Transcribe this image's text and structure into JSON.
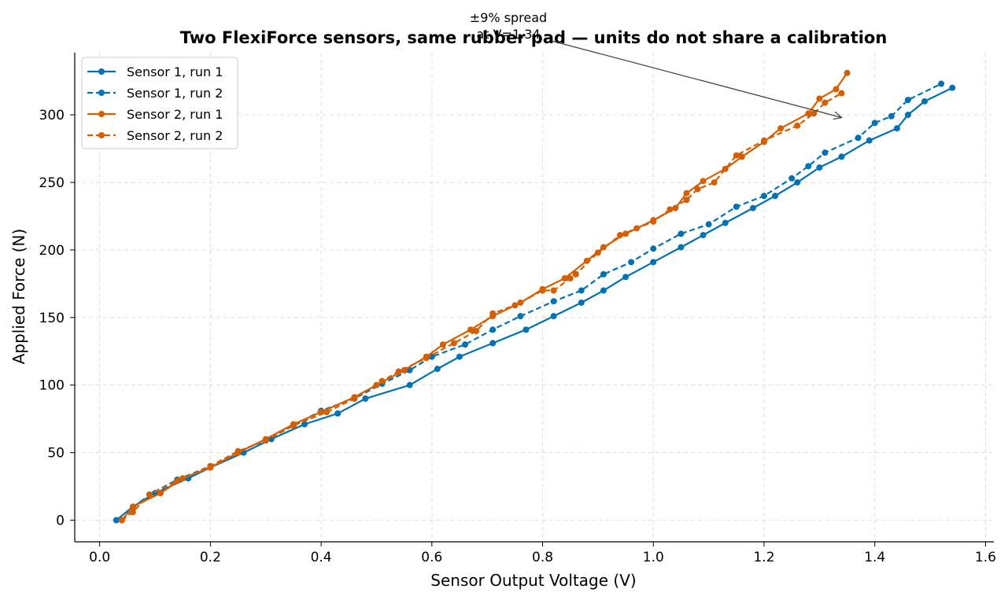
{
  "chart_data": {
    "type": "line",
    "title": "Two FlexiForce sensors, same rubber pad — units do not share a calibration",
    "xlabel": "Sensor Output Voltage (V)",
    "ylabel": "Applied Force (N)",
    "xlim": [
      -0.045,
      1.615
    ],
    "ylim": [
      -16,
      346
    ],
    "xticks": [
      "0.0",
      "0.2",
      "0.4",
      "0.6",
      "0.8",
      "1.0",
      "1.2",
      "1.4",
      "1.6"
    ],
    "yticks": [
      "0",
      "50",
      "100",
      "150",
      "200",
      "250",
      "300"
    ],
    "grid": true,
    "legend_position": "top-left",
    "colors": {
      "sensor1": "#0072b2",
      "sensor2": "#d55e00",
      "annotation": "#444444"
    },
    "annotation": {
      "text_line1": "±9% spread",
      "text_line2": "at V=1.34",
      "x": 1.34,
      "y": 298
    },
    "series": [
      {
        "name": "Sensor 1, run 1",
        "color": "#0072b2",
        "dash": "solid",
        "x": [
          0.03,
          0.06,
          0.1,
          0.16,
          0.2,
          0.26,
          0.31,
          0.37,
          0.43,
          0.48,
          0.56,
          0.61,
          0.65,
          0.71,
          0.77,
          0.82,
          0.87,
          0.91,
          0.95,
          1.0,
          1.05,
          1.09,
          1.13,
          1.18,
          1.22,
          1.26,
          1.3,
          1.34,
          1.39,
          1.44,
          1.46,
          1.49,
          1.54
        ],
        "y": [
          0,
          10,
          20,
          31,
          39,
          50,
          60,
          71,
          79,
          90,
          100,
          112,
          121,
          131,
          141,
          151,
          161,
          170,
          180,
          191,
          202,
          211,
          220,
          231,
          240,
          250,
          261,
          269,
          281,
          290,
          300,
          310,
          320
        ]
      },
      {
        "name": "Sensor 1, run 2",
        "color": "#0072b2",
        "dash": "dashed",
        "x": [
          0.04,
          0.06,
          0.09,
          0.14,
          0.2,
          0.25,
          0.3,
          0.35,
          0.4,
          0.46,
          0.51,
          0.56,
          0.6,
          0.66,
          0.71,
          0.76,
          0.82,
          0.87,
          0.91,
          0.96,
          1.0,
          1.05,
          1.1,
          1.15,
          1.2,
          1.25,
          1.28,
          1.31,
          1.37,
          1.4,
          1.43,
          1.46,
          1.52
        ],
        "y": [
          0,
          9,
          19,
          30,
          40,
          51,
          59,
          70,
          81,
          90,
          101,
          111,
          121,
          130,
          141,
          151,
          162,
          170,
          182,
          191,
          201,
          212,
          219,
          232,
          240,
          253,
          262,
          272,
          283,
          294,
          299,
          311,
          323
        ]
      },
      {
        "name": "Sensor 2, run 1",
        "color": "#d55e00",
        "dash": "solid",
        "x": [
          0.04,
          0.06,
          0.11,
          0.15,
          0.2,
          0.25,
          0.3,
          0.35,
          0.4,
          0.46,
          0.5,
          0.55,
          0.59,
          0.62,
          0.67,
          0.71,
          0.76,
          0.8,
          0.84,
          0.88,
          0.91,
          0.95,
          1.0,
          1.04,
          1.06,
          1.09,
          1.13,
          1.16,
          1.2,
          1.23,
          1.28,
          1.3,
          1.33,
          1.35
        ],
        "y": [
          0,
          10,
          20,
          31,
          39,
          50,
          60,
          71,
          80,
          91,
          100,
          111,
          121,
          130,
          141,
          151,
          161,
          171,
          179,
          192,
          202,
          212,
          222,
          231,
          242,
          251,
          260,
          269,
          280,
          290,
          301,
          312,
          319,
          331
        ]
      },
      {
        "name": "Sensor 2, run 2",
        "color": "#d55e00",
        "dash": "dashed",
        "x": [
          0.04,
          0.06,
          0.09,
          0.14,
          0.2,
          0.25,
          0.3,
          0.35,
          0.41,
          0.46,
          0.51,
          0.54,
          0.59,
          0.64,
          0.68,
          0.71,
          0.75,
          0.8,
          0.82,
          0.85,
          0.86,
          0.9,
          0.94,
          0.97,
          1.0,
          1.03,
          1.06,
          1.08,
          1.11,
          1.15,
          1.2,
          1.26,
          1.29,
          1.31,
          1.34
        ],
        "y": [
          0,
          6,
          19,
          29,
          40,
          51,
          59,
          70,
          80,
          90,
          103,
          110,
          120,
          131,
          140,
          153,
          159,
          170,
          170,
          179,
          182,
          198,
          211,
          216,
          221,
          230,
          237,
          245,
          250,
          270,
          281,
          292,
          301,
          309,
          316
        ]
      }
    ]
  }
}
